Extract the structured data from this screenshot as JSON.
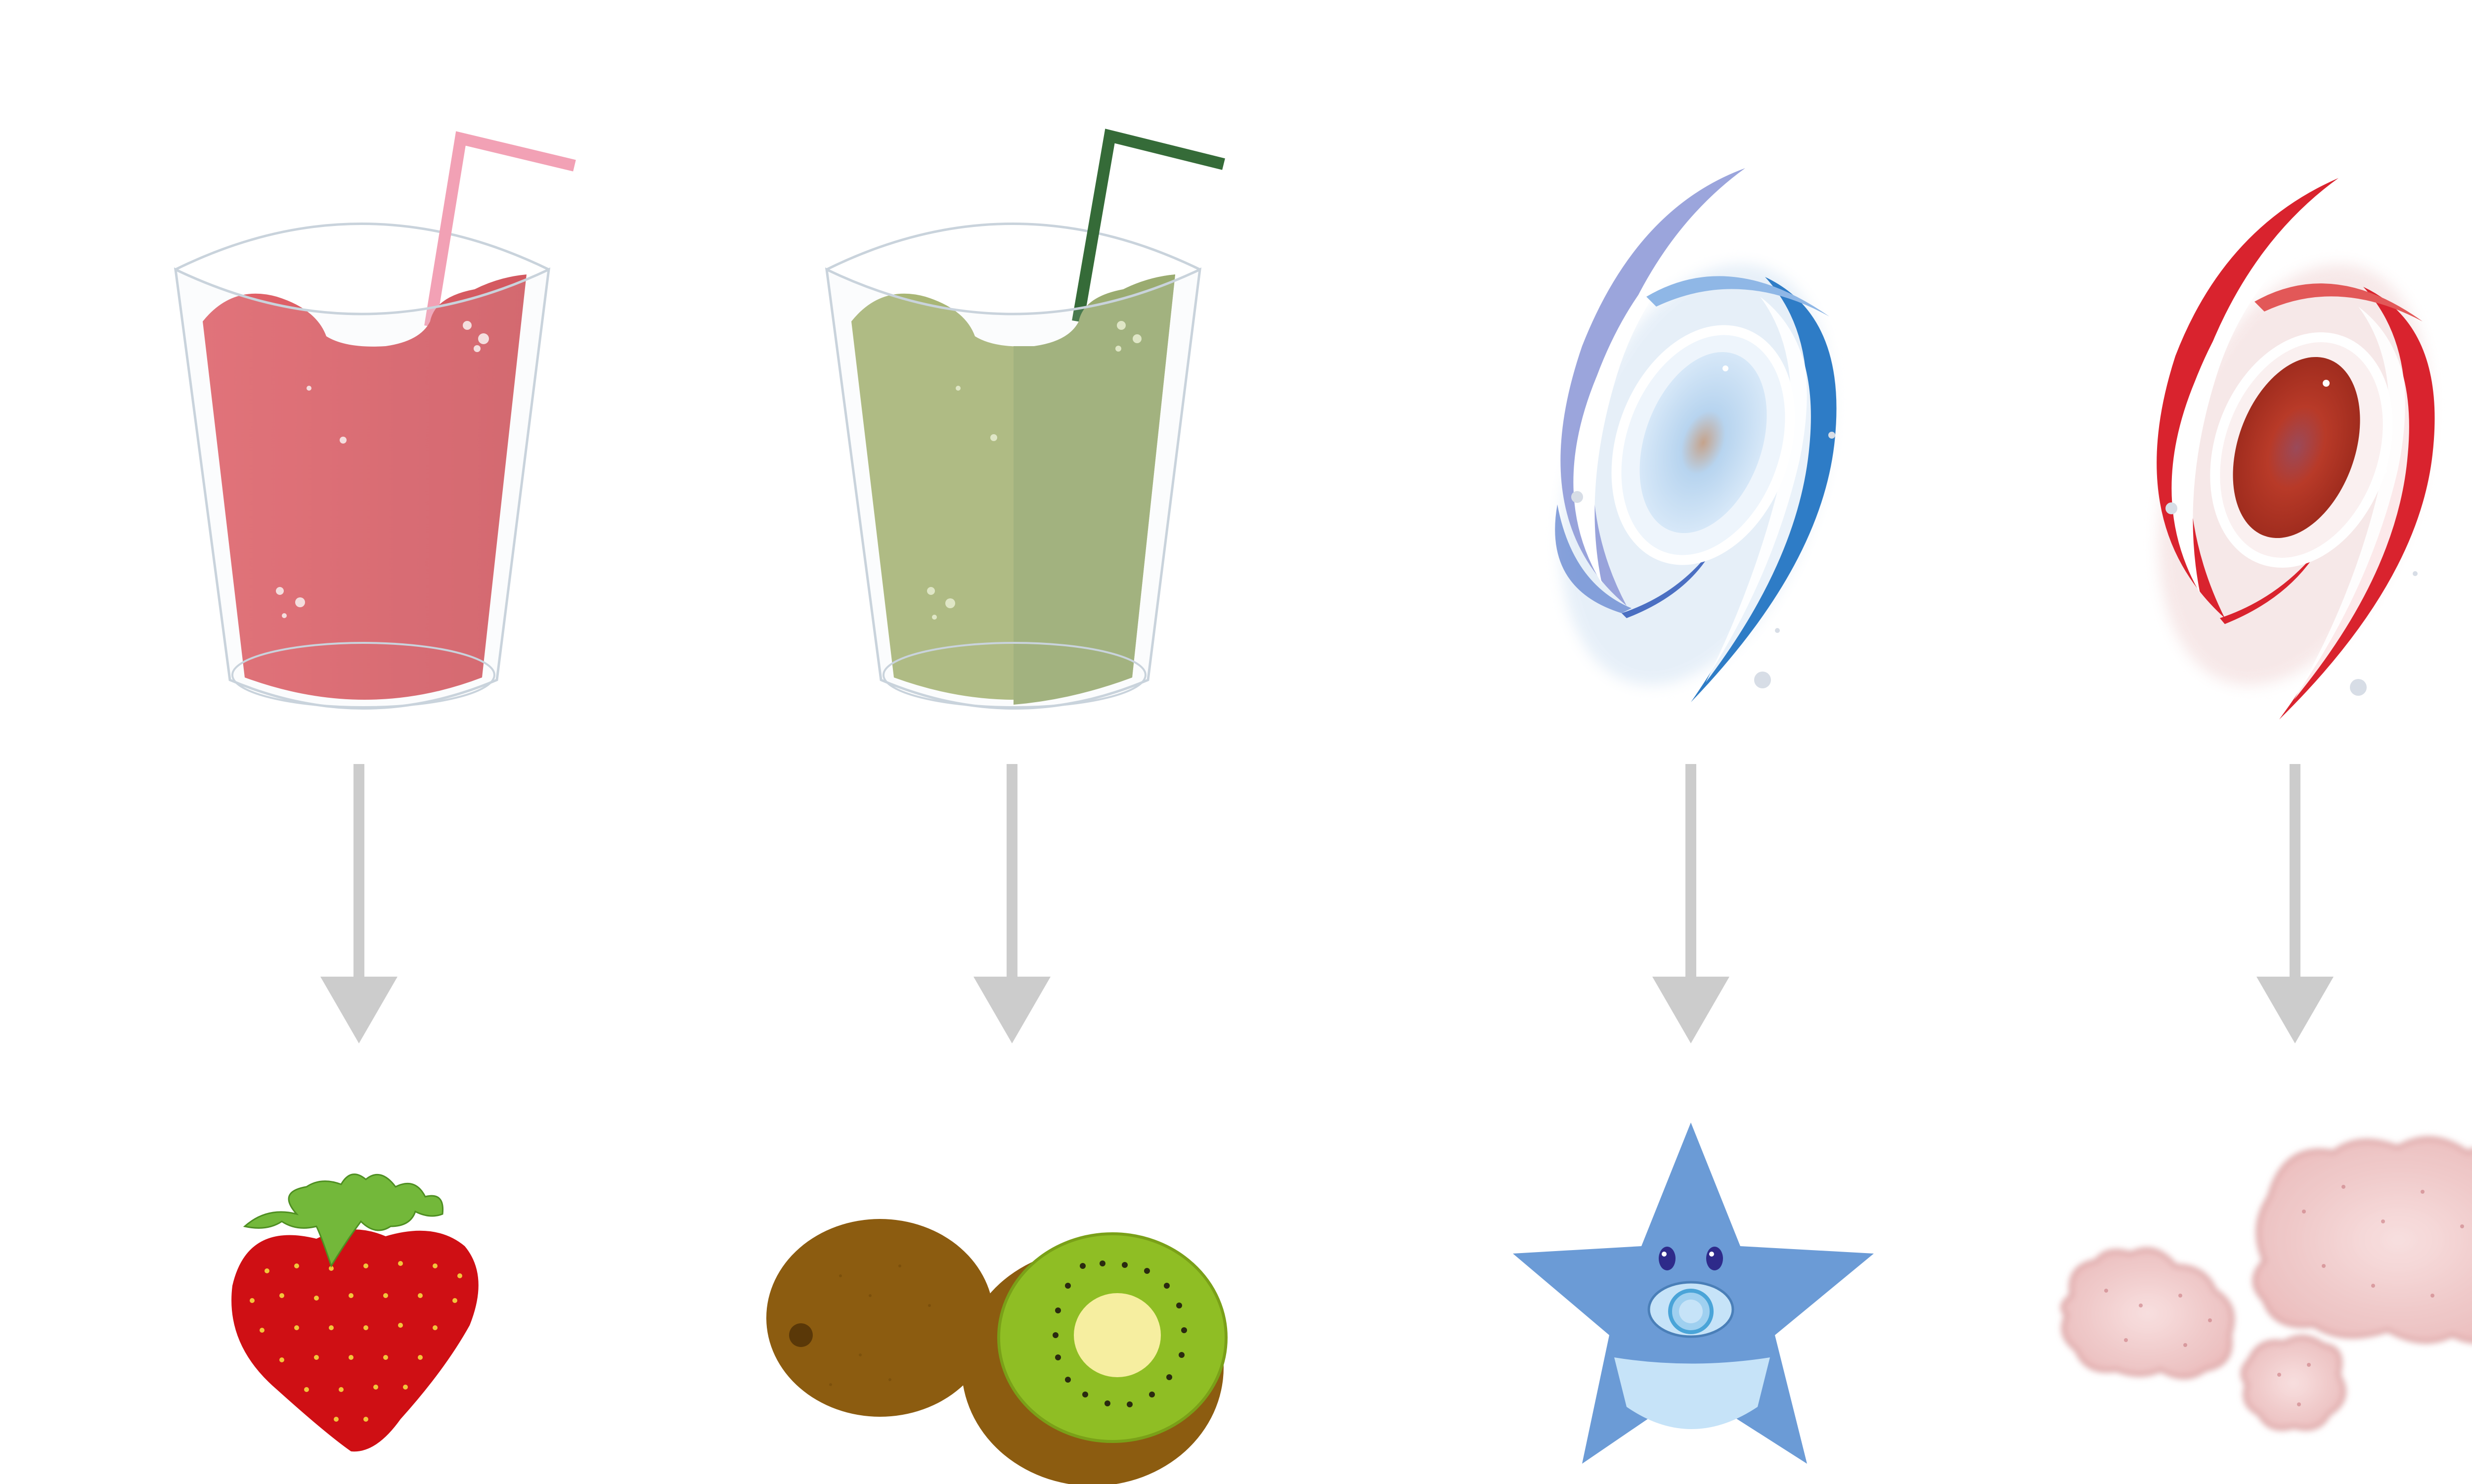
{
  "colors": {
    "background": "#ffffff",
    "arrow": "#cccccc",
    "glass_outline": "#c9d3dc",
    "smoothie_red": "#de5f65",
    "smoothie_red_dark": "#d45a61",
    "straw_pink": "#f2a1b5",
    "smoothie_green": "#a7b474",
    "smoothie_green_dark": "#9bab70",
    "straw_green": "#356b38",
    "galaxy_blue": "#2e7cc6",
    "galaxy_blue_core": "#a9cdee",
    "galaxy_red": "#d9232e",
    "galaxy_red_core": "#a83224",
    "strawberry_red": "#cf0f14",
    "strawberry_leaf": "#73b83a",
    "strawberry_seed": "#f2c53a",
    "kiwi_skin": "#8c5c10",
    "kiwi_flesh": "#8fbe24",
    "kiwi_core": "#f6eea0",
    "star_blue": "#6b9bd6",
    "star_light": "#c6e3f8",
    "cloud_pink": "#f0c7c7"
  },
  "columns": [
    {
      "id": "strawberry",
      "top": "pink-smoothie-glass",
      "bottom": "strawberry-icon"
    },
    {
      "id": "kiwi",
      "top": "green-smoothie-glass",
      "bottom": "kiwi-icon"
    },
    {
      "id": "blue-galaxy",
      "top": "blue-spiral-galaxy",
      "bottom": "baby-star-icon"
    },
    {
      "id": "red-galaxy",
      "top": "red-spiral-galaxy",
      "bottom": "pink-dust-cloud-icon"
    }
  ]
}
